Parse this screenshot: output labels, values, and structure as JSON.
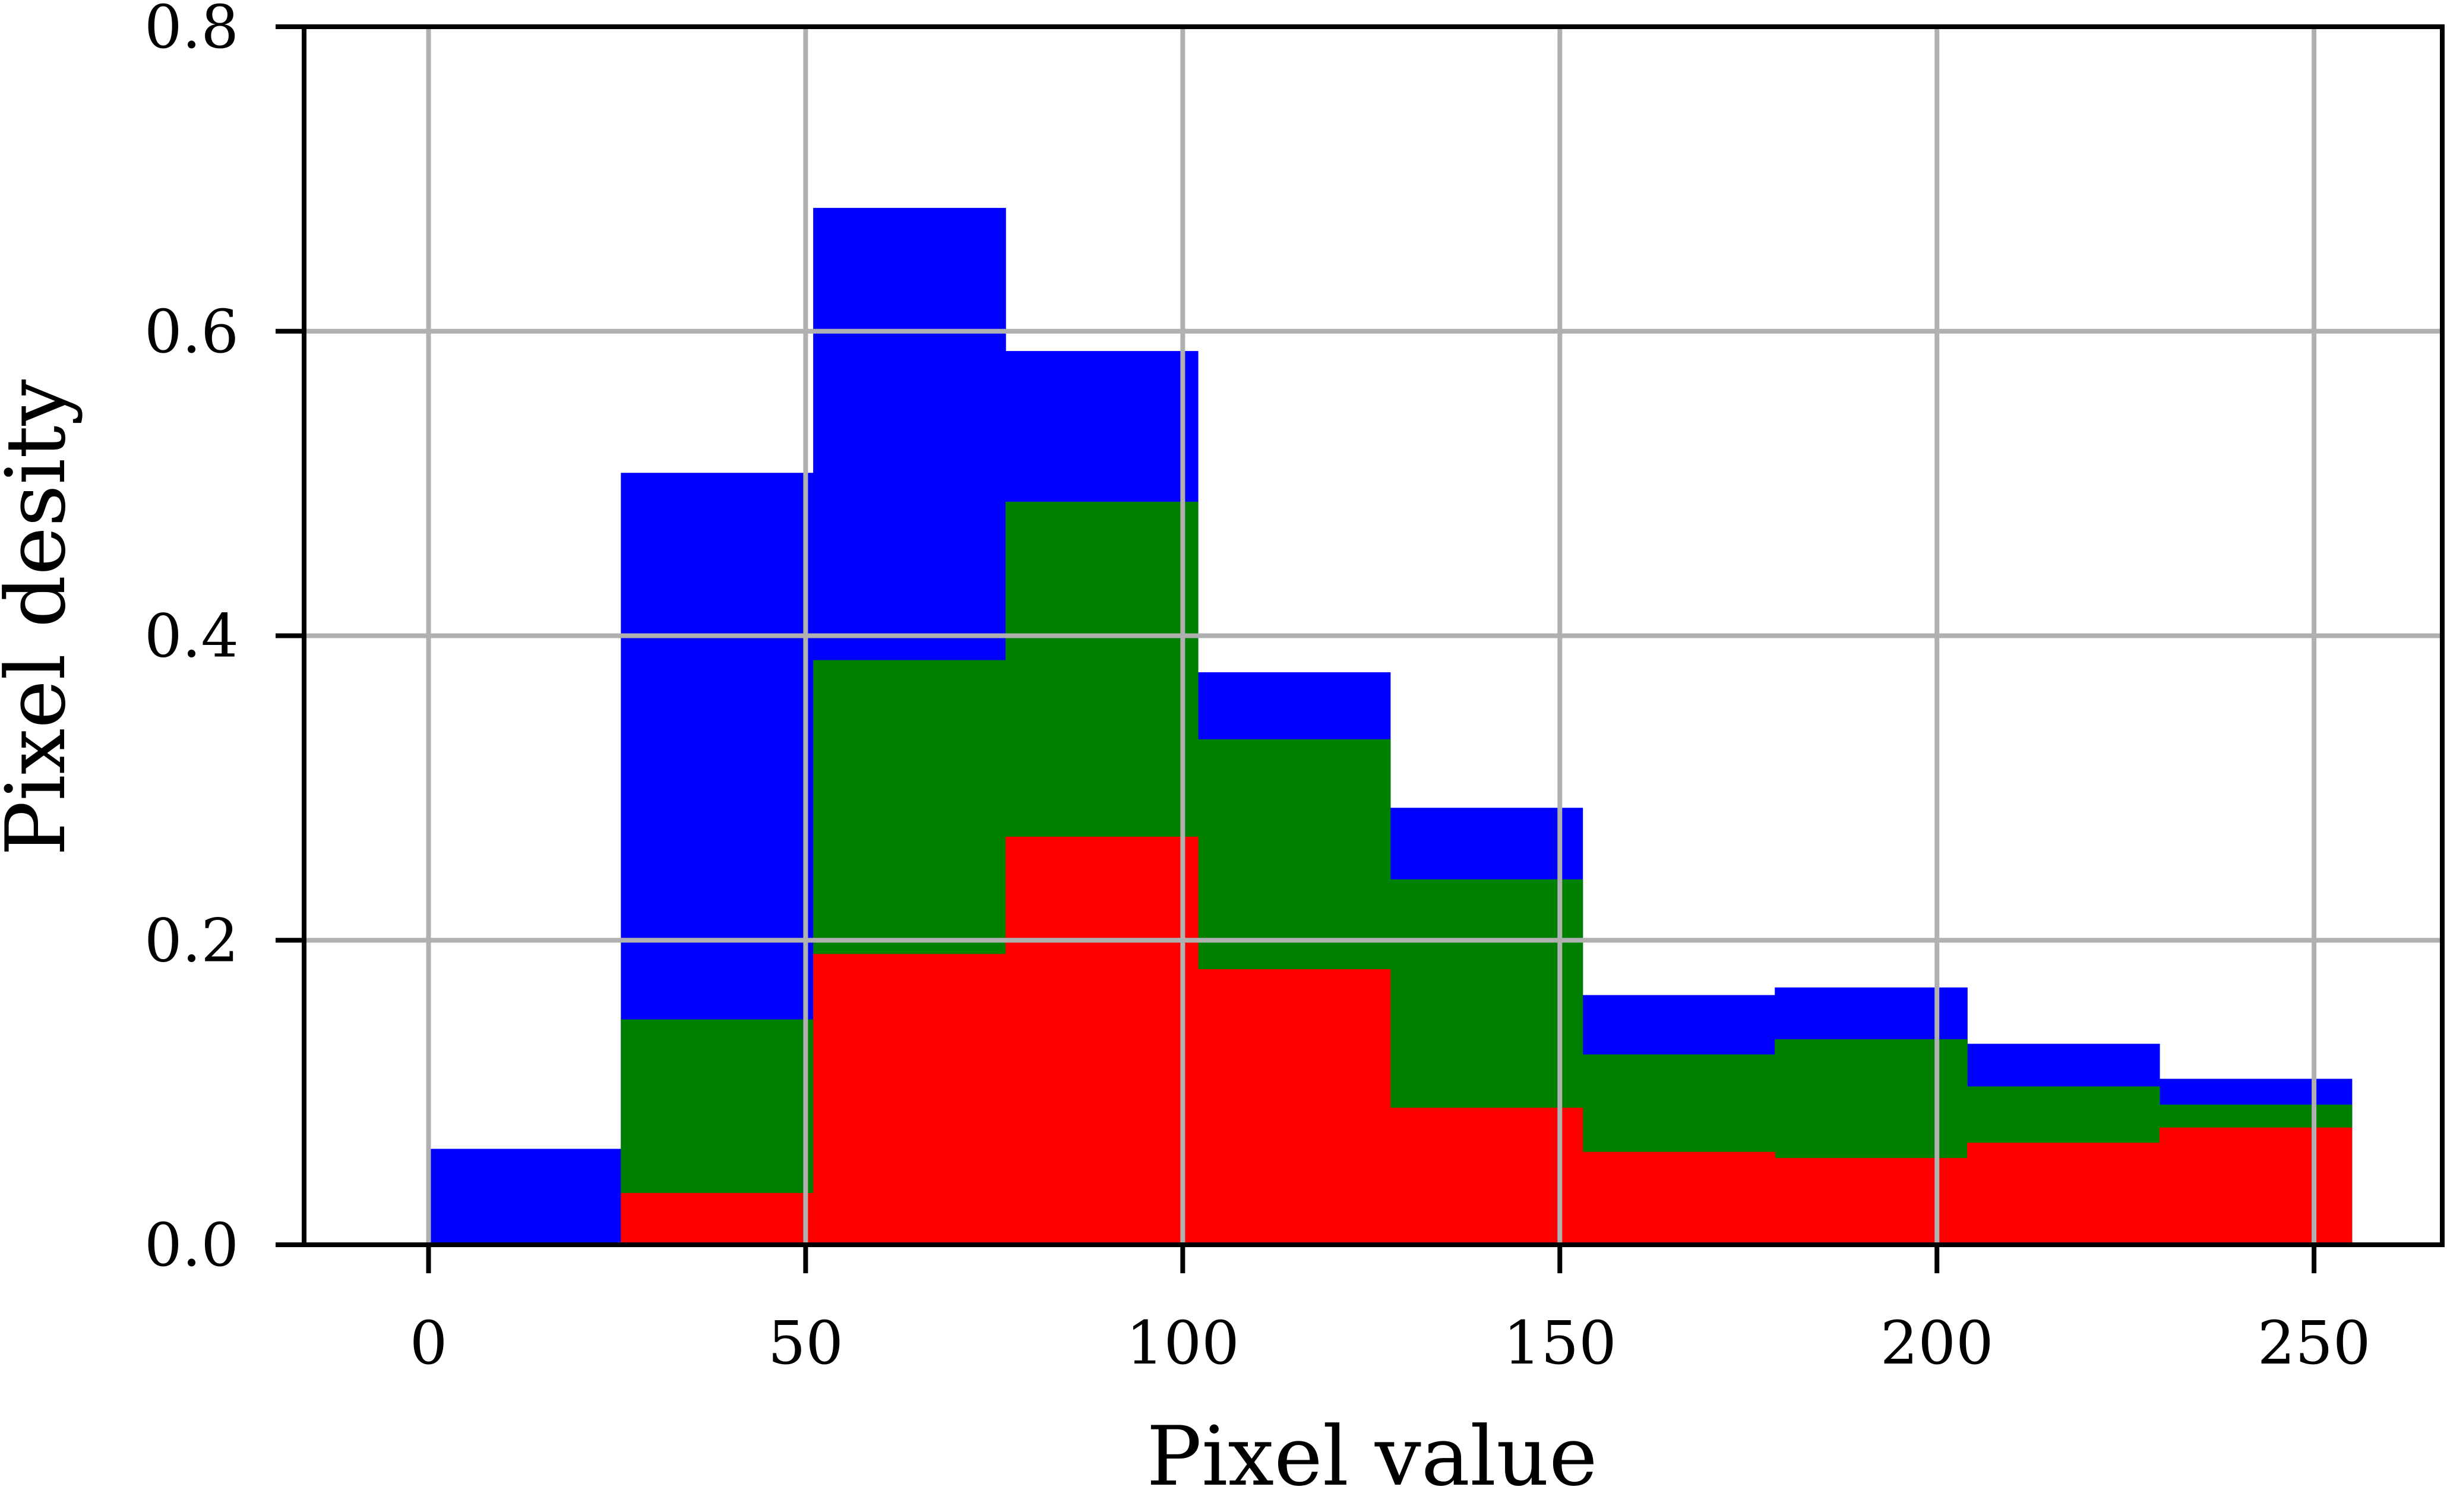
{
  "chart_data": {
    "type": "bar",
    "subtype": "overlaid-histogram",
    "title": "",
    "xlabel": "Pixel value",
    "ylabel": "Pixel desity",
    "xlim": [
      -16.5,
      267
    ],
    "ylim": [
      0,
      0.8
    ],
    "xticks": [
      "0",
      "50",
      "100",
      "150",
      "200",
      "250"
    ],
    "xtick_values": [
      0,
      50,
      100,
      150,
      200,
      250
    ],
    "yticks": [
      "0.0",
      "0.2",
      "0.4",
      "0.6",
      "0.8"
    ],
    "ytick_values": [
      0,
      0.2,
      0.4,
      0.6,
      0.8
    ],
    "grid": true,
    "bin_edges": [
      0,
      25.5,
      51,
      76.5,
      102,
      127.5,
      153,
      178.5,
      204,
      229.5,
      255
    ],
    "series": [
      {
        "color": "#0000ff",
        "values": [
          0.063,
          0.507,
          0.681,
          0.587,
          0.376,
          0.287,
          0.164,
          0.169,
          0.132,
          0.109
        ]
      },
      {
        "color": "#008000",
        "values": [
          0.0,
          0.148,
          0.384,
          0.488,
          0.332,
          0.24,
          0.125,
          0.135,
          0.104,
          0.092
        ]
      },
      {
        "color": "#ff0000",
        "values": [
          0.0,
          0.034,
          0.191,
          0.268,
          0.181,
          0.09,
          0.061,
          0.057,
          0.067,
          0.077
        ]
      }
    ],
    "colors": {
      "grid": "#b0b0b0",
      "axis": "#000000"
    }
  }
}
